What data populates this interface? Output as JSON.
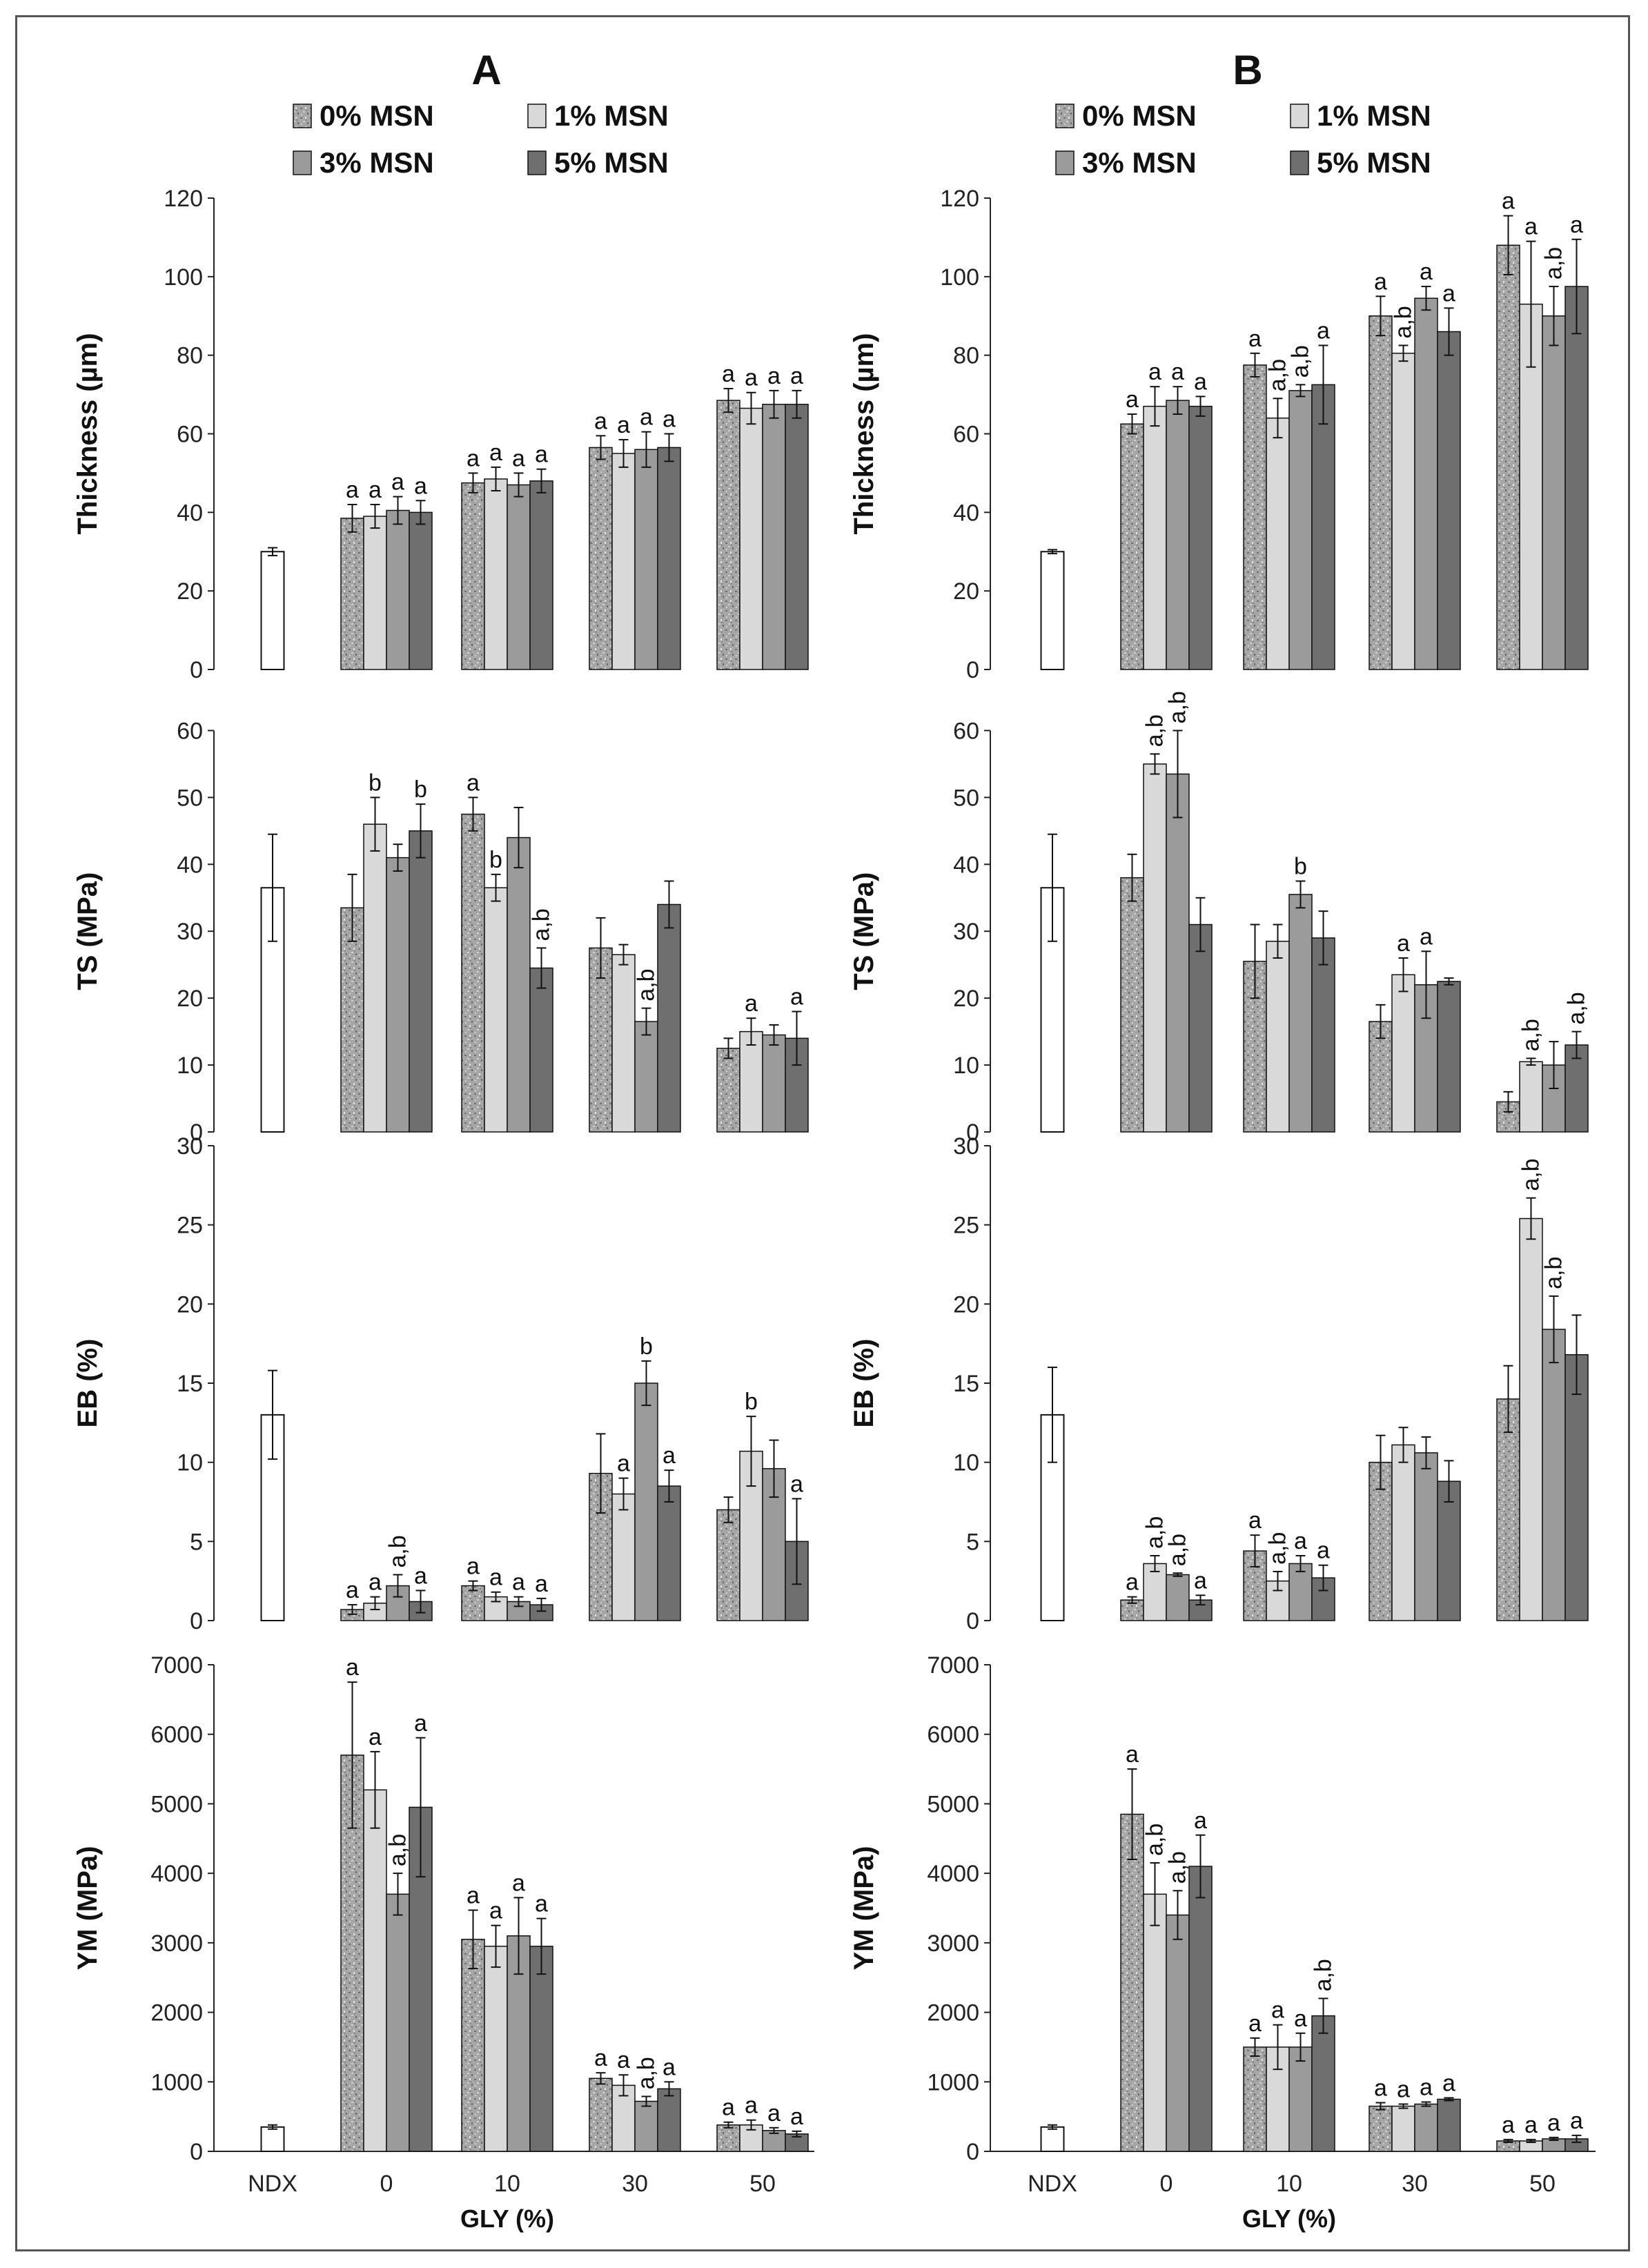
{
  "figure": {
    "legend": [
      "0% MSN",
      "1% MSN",
      "3% MSN",
      "5% MSN"
    ],
    "x_categories": [
      "NDX",
      "0",
      "10",
      "30",
      "50"
    ],
    "xlabel": "GLY (%)",
    "colors": {
      "ndx_fill": "#ffffff",
      "s0": "#a8a8a8",
      "s1": "#d9d9d9",
      "s3": "#9b9b9b",
      "s5": "#6f6f6f",
      "stroke": "#111111"
    }
  },
  "chart_data": [
    {
      "type": "bar",
      "panel": "A",
      "show_panel_label": true,
      "show_legend": true,
      "show_xaxis_labels": false,
      "ylabel": "Thickness (µm)",
      "ylim": [
        0,
        120
      ],
      "yticks": [
        0,
        20,
        40,
        60,
        80,
        100,
        120
      ],
      "ndx": {
        "value": 30,
        "err": 1
      },
      "series": [
        {
          "name": "0% MSN",
          "values": [
            38.5,
            47.5,
            56.5,
            68.5
          ],
          "errors": [
            3.5,
            2.5,
            3,
            3
          ],
          "labels": [
            "a",
            "a",
            "a",
            "a"
          ]
        },
        {
          "name": "1% MSN",
          "values": [
            39,
            48.5,
            55,
            66.5
          ],
          "errors": [
            3,
            3,
            3.5,
            4
          ],
          "labels": [
            "a",
            "a",
            "a",
            "a"
          ]
        },
        {
          "name": "3% MSN",
          "values": [
            40.5,
            47,
            56,
            67.5
          ],
          "errors": [
            3.5,
            3,
            4.5,
            3.5
          ],
          "labels": [
            "a",
            "a",
            "a",
            "a"
          ]
        },
        {
          "name": "5% MSN",
          "values": [
            40,
            48,
            56.5,
            67.5
          ],
          "errors": [
            3,
            3,
            3.5,
            3.5
          ],
          "labels": [
            "a",
            "a",
            "a",
            "a"
          ]
        }
      ]
    },
    {
      "type": "bar",
      "panel": "B",
      "show_panel_label": true,
      "show_legend": true,
      "show_xaxis_labels": false,
      "ylabel": "Thickness (µm)",
      "ylim": [
        0,
        120
      ],
      "yticks": [
        0,
        20,
        40,
        60,
        80,
        100,
        120
      ],
      "ndx": {
        "value": 30,
        "err": 0.5
      },
      "series": [
        {
          "name": "0% MSN",
          "values": [
            62.5,
            77.5,
            90,
            108
          ],
          "errors": [
            2.5,
            3,
            5,
            7.5
          ],
          "labels": [
            "a",
            "a",
            "a",
            "a"
          ]
        },
        {
          "name": "1% MSN",
          "values": [
            67,
            64,
            80.5,
            93
          ],
          "errors": [
            5,
            5,
            2,
            16
          ],
          "labels": [
            "a",
            "a,b",
            "a,b",
            "a"
          ]
        },
        {
          "name": "3% MSN",
          "values": [
            68.5,
            71,
            94.5,
            90
          ],
          "errors": [
            3.5,
            1.5,
            3,
            7.5
          ],
          "labels": [
            "a",
            "a,b",
            "a",
            "a,b"
          ]
        },
        {
          "name": "5% MSN",
          "values": [
            67,
            72.5,
            86,
            97.5
          ],
          "errors": [
            2.5,
            10,
            6,
            12
          ],
          "labels": [
            "a",
            "a",
            "a",
            "a"
          ]
        }
      ]
    },
    {
      "type": "bar",
      "panel": "A",
      "show_panel_label": false,
      "show_legend": false,
      "show_xaxis_labels": false,
      "ylabel": "TS (MPa)",
      "ylim": [
        0,
        65
      ],
      "yticks": [
        0,
        10,
        20,
        30,
        40,
        50,
        60
      ],
      "ndx": {
        "value": 36.5,
        "err": 8
      },
      "series": [
        {
          "name": "0% MSN",
          "values": [
            33.5,
            47.5,
            27.5,
            12.5
          ],
          "errors": [
            5,
            2.5,
            4.5,
            1.5
          ],
          "labels": [
            "",
            "a",
            "",
            ""
          ]
        },
        {
          "name": "1% MSN",
          "values": [
            46,
            36.5,
            26.5,
            15
          ],
          "errors": [
            4,
            2,
            1.5,
            2
          ],
          "labels": [
            "b",
            "b",
            "",
            "a"
          ]
        },
        {
          "name": "3% MSN",
          "values": [
            41,
            44,
            16.5,
            14.5
          ],
          "errors": [
            2,
            4.5,
            2,
            1.5
          ],
          "labels": [
            "",
            "",
            "a,b",
            ""
          ]
        },
        {
          "name": "5% MSN",
          "values": [
            45,
            24.5,
            34,
            14
          ],
          "errors": [
            4,
            3,
            3.5,
            4
          ],
          "labels": [
            "b",
            "a,b",
            "",
            "a"
          ]
        }
      ]
    },
    {
      "type": "bar",
      "panel": "B",
      "show_panel_label": false,
      "show_legend": false,
      "show_xaxis_labels": false,
      "ylabel": "TS (MPa)",
      "ylim": [
        0,
        65
      ],
      "yticks": [
        0,
        10,
        20,
        30,
        40,
        50,
        60
      ],
      "ndx": {
        "value": 36.5,
        "err": 8
      },
      "series": [
        {
          "name": "0% MSN",
          "values": [
            38,
            25.5,
            16.5,
            4.5
          ],
          "errors": [
            3.5,
            5.5,
            2.5,
            1.5
          ],
          "labels": [
            "",
            "",
            "",
            ""
          ]
        },
        {
          "name": "1% MSN",
          "values": [
            55,
            28.5,
            23.5,
            10.5
          ],
          "errors": [
            1.5,
            2.5,
            2.5,
            0.5
          ],
          "labels": [
            "a,b",
            "",
            "a",
            "a,b"
          ]
        },
        {
          "name": "3% MSN",
          "values": [
            53.5,
            35.5,
            22,
            10
          ],
          "errors": [
            6.5,
            2,
            5,
            3.5
          ],
          "labels": [
            "a,b",
            "b",
            "a",
            ""
          ]
        },
        {
          "name": "5% MSN",
          "values": [
            31,
            29,
            22.5,
            13
          ],
          "errors": [
            4,
            4,
            0.5,
            2
          ],
          "labels": [
            "",
            "",
            "",
            "a,b"
          ]
        }
      ]
    },
    {
      "type": "bar",
      "panel": "A",
      "show_panel_label": false,
      "show_legend": false,
      "show_xaxis_labels": false,
      "ylabel": "EB (%)",
      "ylim": [
        0,
        30
      ],
      "yticks": [
        0,
        5,
        10,
        15,
        20,
        25,
        30
      ],
      "ndx": {
        "value": 13,
        "err": 2.8
      },
      "series": [
        {
          "name": "0% MSN",
          "values": [
            0.7,
            2.2,
            9.3,
            7
          ],
          "errors": [
            0.3,
            0.3,
            2.5,
            0.8
          ],
          "labels": [
            "a",
            "a",
            "",
            ""
          ]
        },
        {
          "name": "1% MSN",
          "values": [
            1.1,
            1.5,
            8,
            10.7
          ],
          "errors": [
            0.4,
            0.3,
            1,
            2.2
          ],
          "labels": [
            "a",
            "a",
            "a",
            "b"
          ]
        },
        {
          "name": "3% MSN",
          "values": [
            2.2,
            1.2,
            15,
            9.6
          ],
          "errors": [
            0.7,
            0.3,
            1.4,
            1.8
          ],
          "labels": [
            "a,b",
            "a",
            "b",
            ""
          ]
        },
        {
          "name": "5% MSN",
          "values": [
            1.2,
            1,
            8.5,
            5
          ],
          "errors": [
            0.7,
            0.4,
            1,
            2.7
          ],
          "labels": [
            "a",
            "a",
            "a",
            "a"
          ]
        }
      ]
    },
    {
      "type": "bar",
      "panel": "B",
      "show_panel_label": false,
      "show_legend": false,
      "show_xaxis_labels": false,
      "ylabel": "EB (%)",
      "ylim": [
        0,
        30
      ],
      "yticks": [
        0,
        5,
        10,
        15,
        20,
        25,
        30
      ],
      "ndx": {
        "value": 13,
        "err": 3
      },
      "series": [
        {
          "name": "0% MSN",
          "values": [
            1.3,
            4.4,
            10,
            14
          ],
          "errors": [
            0.2,
            1,
            1.7,
            2.1
          ],
          "labels": [
            "a",
            "a",
            "",
            ""
          ]
        },
        {
          "name": "1% MSN",
          "values": [
            3.6,
            2.5,
            11.1,
            25.4
          ],
          "errors": [
            0.5,
            0.6,
            1.1,
            1.3
          ],
          "labels": [
            "a,b",
            "a,b",
            "",
            "a,b"
          ]
        },
        {
          "name": "3% MSN",
          "values": [
            2.9,
            3.6,
            10.6,
            18.4
          ],
          "errors": [
            0.1,
            0.5,
            1,
            2.1
          ],
          "labels": [
            "a,b",
            "a",
            "",
            "a,b"
          ]
        },
        {
          "name": "5% MSN",
          "values": [
            1.3,
            2.7,
            8.8,
            16.8
          ],
          "errors": [
            0.3,
            0.8,
            1.3,
            2.5
          ],
          "labels": [
            "a",
            "a",
            "",
            ""
          ]
        }
      ]
    },
    {
      "type": "bar",
      "panel": "A",
      "show_panel_label": false,
      "show_legend": false,
      "show_xaxis_labels": true,
      "ylabel": "YM (MPa)",
      "ylim": [
        0,
        7000
      ],
      "yticks": [
        0,
        1000,
        2000,
        3000,
        4000,
        5000,
        6000,
        7000
      ],
      "ndx": {
        "value": 350,
        "err": 30
      },
      "series": [
        {
          "name": "0% MSN",
          "values": [
            5700,
            3050,
            1050,
            380
          ],
          "errors": [
            1050,
            420,
            80,
            40
          ],
          "labels": [
            "a",
            "a",
            "a",
            "a"
          ]
        },
        {
          "name": "1% MSN",
          "values": [
            5200,
            2950,
            950,
            380
          ],
          "errors": [
            550,
            300,
            150,
            70
          ],
          "labels": [
            "a",
            "a",
            "a",
            "a"
          ]
        },
        {
          "name": "3% MSN",
          "values": [
            3700,
            3100,
            720,
            300
          ],
          "errors": [
            300,
            550,
            70,
            40
          ],
          "labels": [
            "a,b",
            "a",
            "a,b",
            "a"
          ]
        },
        {
          "name": "5% MSN",
          "values": [
            4950,
            2950,
            900,
            250
          ],
          "errors": [
            1000,
            400,
            100,
            40
          ],
          "labels": [
            "a",
            "a",
            "a",
            "a"
          ]
        }
      ]
    },
    {
      "type": "bar",
      "panel": "B",
      "show_panel_label": false,
      "show_legend": false,
      "show_xaxis_labels": true,
      "ylabel": "YM (MPa)",
      "ylim": [
        0,
        7000
      ],
      "yticks": [
        0,
        1000,
        2000,
        3000,
        4000,
        5000,
        6000,
        7000
      ],
      "ndx": {
        "value": 350,
        "err": 30
      },
      "series": [
        {
          "name": "0% MSN",
          "values": [
            4850,
            1500,
            650,
            150
          ],
          "errors": [
            650,
            130,
            50,
            20
          ],
          "labels": [
            "a",
            "a",
            "a",
            "a"
          ]
        },
        {
          "name": "1% MSN",
          "values": [
            3700,
            1500,
            650,
            150
          ],
          "errors": [
            450,
            320,
            30,
            20
          ],
          "labels": [
            "a,b",
            "a",
            "a",
            "a"
          ]
        },
        {
          "name": "3% MSN",
          "values": [
            3400,
            1500,
            680,
            180
          ],
          "errors": [
            350,
            200,
            30,
            20
          ],
          "labels": [
            "a,b",
            "a",
            "a",
            "a"
          ]
        },
        {
          "name": "5% MSN",
          "values": [
            4100,
            1950,
            750,
            180
          ],
          "errors": [
            450,
            250,
            20,
            50
          ],
          "labels": [
            "a",
            "a,b",
            "a",
            "a"
          ]
        }
      ]
    }
  ]
}
